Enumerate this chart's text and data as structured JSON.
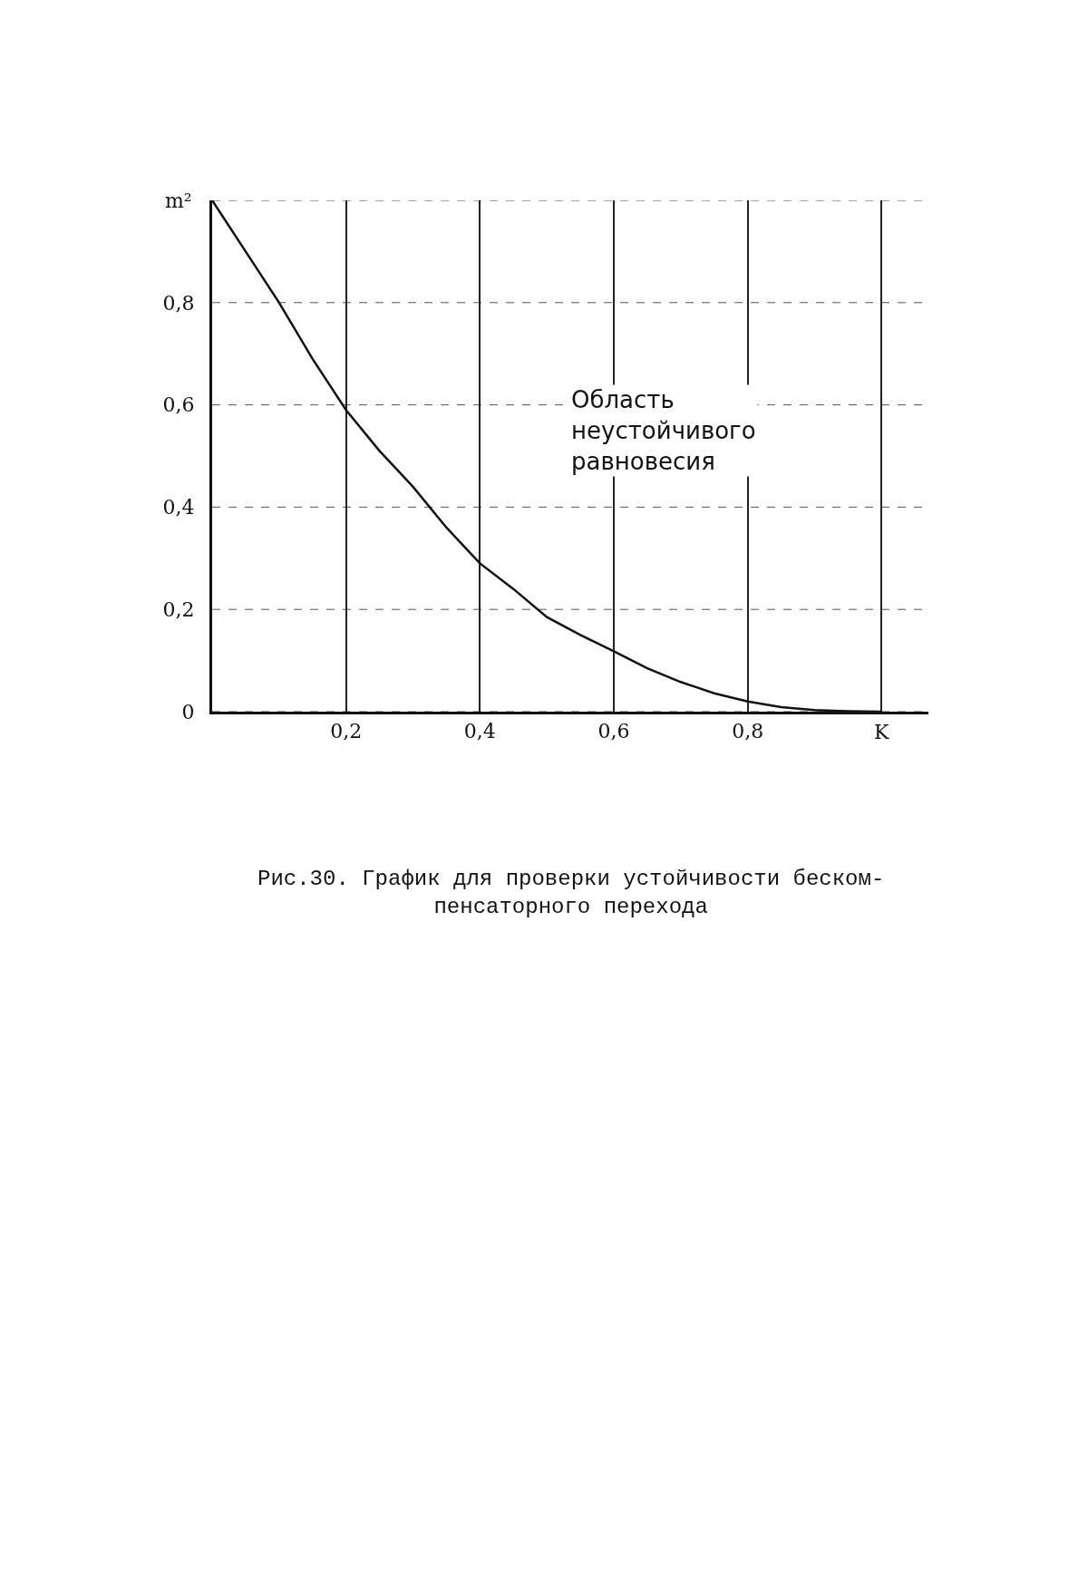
{
  "chart_data": {
    "type": "line",
    "xlabel": "K",
    "ylabel": "m²",
    "x": [
      0,
      0.05,
      0.1,
      0.15,
      0.2,
      0.25,
      0.3,
      0.35,
      0.4,
      0.45,
      0.5,
      0.55,
      0.6,
      0.65,
      0.7,
      0.75,
      0.8,
      0.85,
      0.9,
      0.95,
      1.0
    ],
    "series": [
      {
        "color": "#111111",
        "values": [
          1.0,
          0.9,
          0.8,
          0.69,
          0.59,
          0.51,
          0.44,
          0.36,
          0.29,
          0.24,
          0.185,
          0.15,
          0.118,
          0.085,
          0.058,
          0.036,
          0.02,
          0.009,
          0.003,
          0.001,
          0
        ]
      }
    ],
    "xlim": [
      0,
      1.07
    ],
    "ylim": [
      0,
      1
    ],
    "xticks": [
      {
        "value": 0.2,
        "label": "0,2"
      },
      {
        "value": 0.4,
        "label": "0,4"
      },
      {
        "value": 0.6,
        "label": "0,6"
      },
      {
        "value": 0.8,
        "label": "0,8"
      },
      {
        "value": 1.0,
        "label": null
      }
    ],
    "yticks": [
      {
        "value": 0,
        "label": "0"
      },
      {
        "value": 0.2,
        "label": "0,2"
      },
      {
        "value": 0.4,
        "label": "0,4"
      },
      {
        "value": 0.6,
        "label": "0,6"
      },
      {
        "value": 0.8,
        "label": "0,8"
      },
      {
        "value": 1.0,
        "label": null
      }
    ],
    "grid": true,
    "marker": "none",
    "line_style": "solid",
    "annotations": [
      "Область\nнеустойчивого\nравновесия",
      "Рис.30. График для проверки устойчивости беском-\nпенсаторного перехода"
    ]
  }
}
